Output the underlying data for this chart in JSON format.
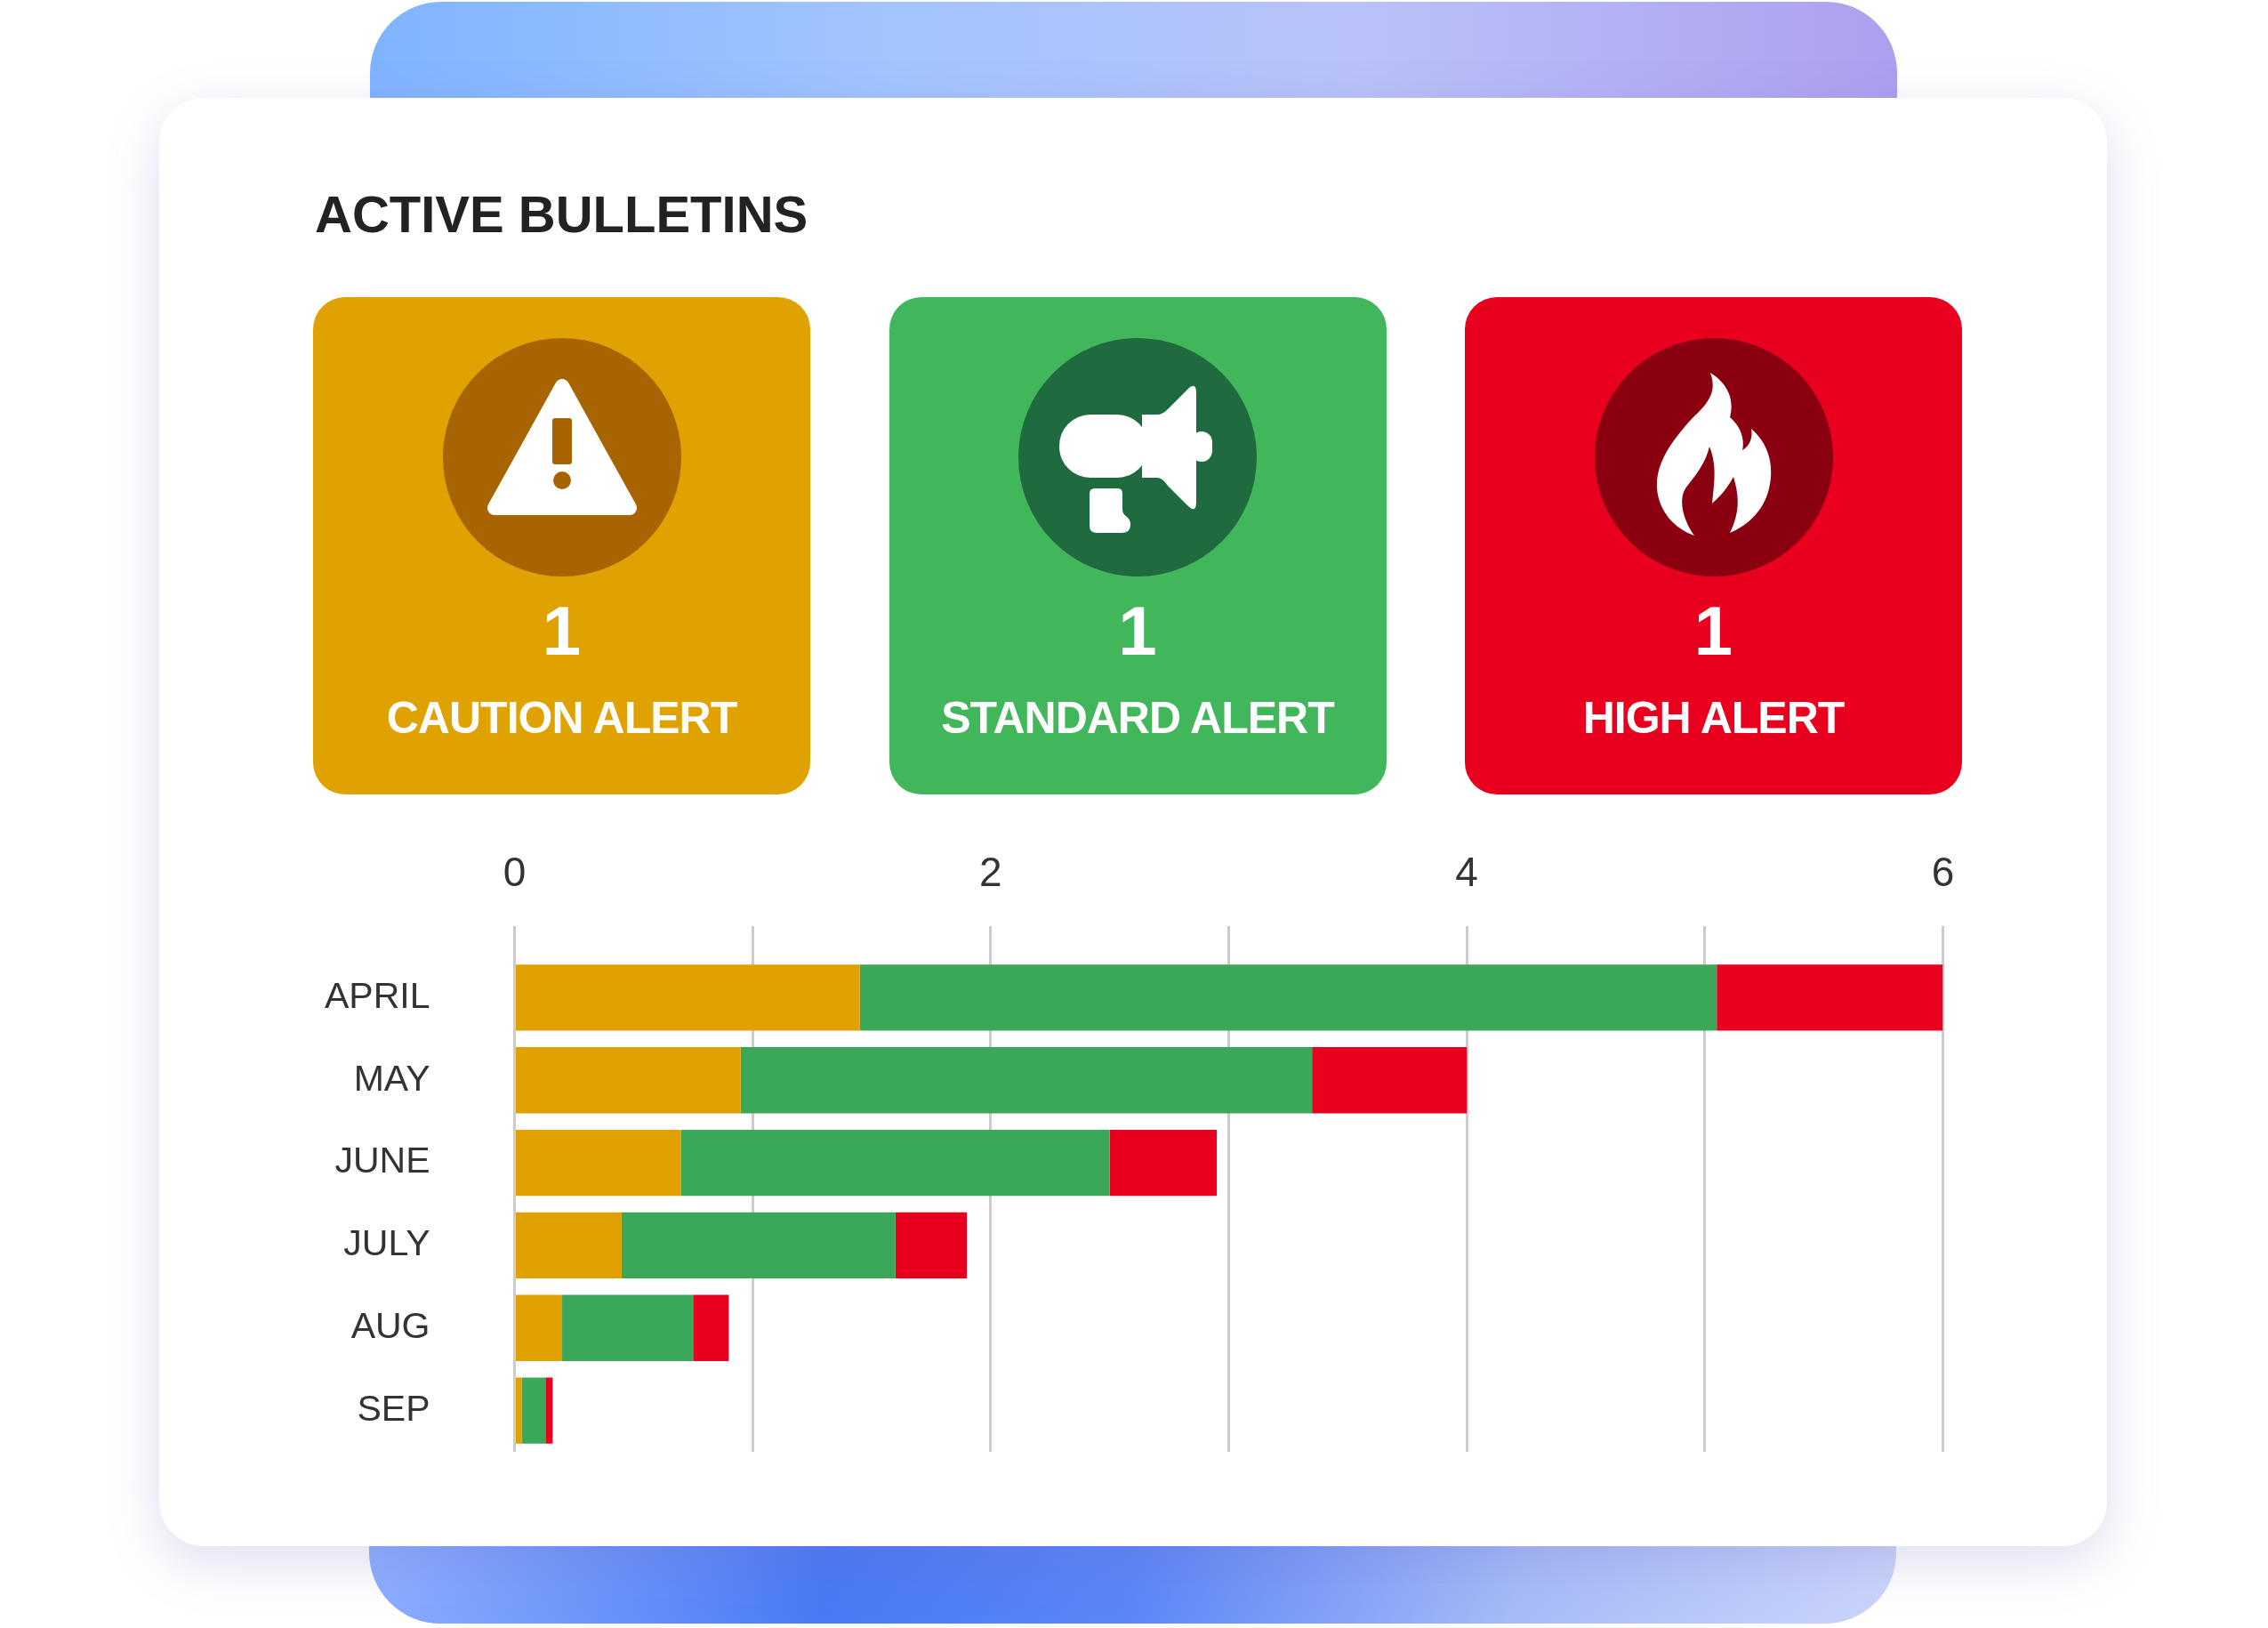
{
  "chart_data": [
    {
      "type": "other",
      "title": "ACTIVE BULLETINS",
      "categories": [
        "CAUTION ALERT",
        "STANDARD ALERT",
        "HIGH ALERT"
      ],
      "values": [
        1,
        1,
        1
      ],
      "colors": [
        "#e0a200",
        "#42b65a",
        "#e8001e"
      ],
      "data_labels": true
    },
    {
      "type": "bar",
      "orientation": "horizontal",
      "stacked": true,
      "categories": [
        "APRIL",
        "MAY",
        "JUNE",
        "JULY",
        "AUG",
        "SEP"
      ],
      "series": [
        {
          "color": "#e0a000",
          "values": [
            1.45,
            0.95,
            0.7,
            0.45,
            0.2,
            0.03
          ]
        },
        {
          "color": "#3aa858",
          "values": [
            3.6,
            2.4,
            1.8,
            1.15,
            0.55,
            0.1
          ]
        },
        {
          "color": "#e8001e",
          "values": [
            0.95,
            0.65,
            0.45,
            0.3,
            0.15,
            0.03
          ]
        }
      ],
      "xlim": [
        0,
        6
      ],
      "xticks": [
        0,
        {
          "value": 1,
          "label": null
        },
        2,
        {
          "value": 3,
          "label": null
        },
        4,
        {
          "value": 5,
          "label": null
        },
        6
      ],
      "grid": "x"
    }
  ]
}
